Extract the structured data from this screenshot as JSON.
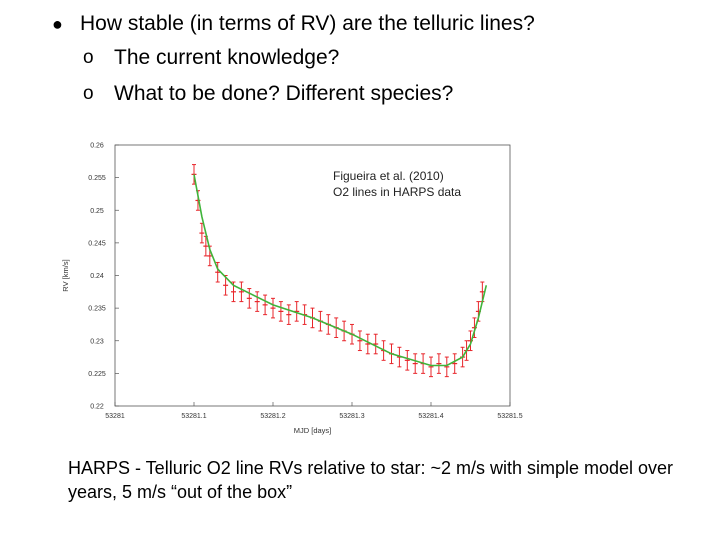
{
  "bullets": {
    "main": "How stable (in terms of RV) are the telluric lines?",
    "sub": [
      "The current knowledge?",
      "What to be done? Different species?"
    ],
    "sub_marker": "o"
  },
  "caption": "HARPS - Telluric O2 line RVs relative to star: ~2 m/s with simple model over years, 5 m/s “out of the box”",
  "chart_data": {
    "type": "scatter",
    "xlabel": "MJD [days]",
    "ylabel": "RV [km/s]",
    "xlim": [
      53281,
      53281.5
    ],
    "ylim": [
      0.22,
      0.26
    ],
    "x_ticks": [
      "53281",
      "53281.1",
      "53281.2",
      "53281.3",
      "53281.4",
      "53281.5"
    ],
    "y_ticks": [
      "0.22",
      "0.225",
      "0.23",
      "0.235",
      "0.24",
      "0.245",
      "0.25",
      "0.255",
      "0.26"
    ],
    "annotation": [
      "Figueira et al. (2010)",
      "O2 lines in HARPS data"
    ],
    "grid": false,
    "colors": {
      "points": "#e8262b",
      "fit": "#3fb43a",
      "axes": "#555555"
    },
    "series": [
      {
        "values_desc": "RV measurements with error bars",
        "x": [
          53281.1,
          53281.105,
          53281.11,
          53281.115,
          53281.12,
          53281.13,
          53281.14,
          53281.15,
          53281.16,
          53281.17,
          53281.18,
          53281.19,
          53281.2,
          53281.21,
          53281.22,
          53281.23,
          53281.24,
          53281.25,
          53281.26,
          53281.27,
          53281.28,
          53281.29,
          53281.3,
          53281.31,
          53281.32,
          53281.33,
          53281.34,
          53281.35,
          53281.36,
          53281.37,
          53281.38,
          53281.39,
          53281.4,
          53281.41,
          53281.42,
          53281.43,
          53281.44,
          53281.445,
          53281.45,
          53281.455,
          53281.46,
          53281.465
        ],
        "y": [
          0.2555,
          0.2515,
          0.2465,
          0.2445,
          0.243,
          0.2405,
          0.2385,
          0.2375,
          0.2375,
          0.2365,
          0.236,
          0.2355,
          0.235,
          0.2345,
          0.234,
          0.2345,
          0.234,
          0.2335,
          0.233,
          0.2325,
          0.232,
          0.2315,
          0.231,
          0.23,
          0.2295,
          0.2295,
          0.2285,
          0.228,
          0.2275,
          0.227,
          0.2265,
          0.2265,
          0.226,
          0.2265,
          0.226,
          0.2265,
          0.2275,
          0.2285,
          0.23,
          0.232,
          0.2345,
          0.2375
        ],
        "error": 0.0015
      }
    ],
    "fit": {
      "x": [
        53281.1,
        53281.11,
        53281.12,
        53281.13,
        53281.15,
        53281.2,
        53281.25,
        53281.3,
        53281.35,
        53281.4,
        53281.42,
        53281.44,
        53281.45,
        53281.46,
        53281.47
      ],
      "y": [
        0.2555,
        0.249,
        0.244,
        0.241,
        0.2385,
        0.2355,
        0.2335,
        0.231,
        0.228,
        0.2262,
        0.2262,
        0.2275,
        0.2295,
        0.2335,
        0.2385
      ]
    }
  }
}
